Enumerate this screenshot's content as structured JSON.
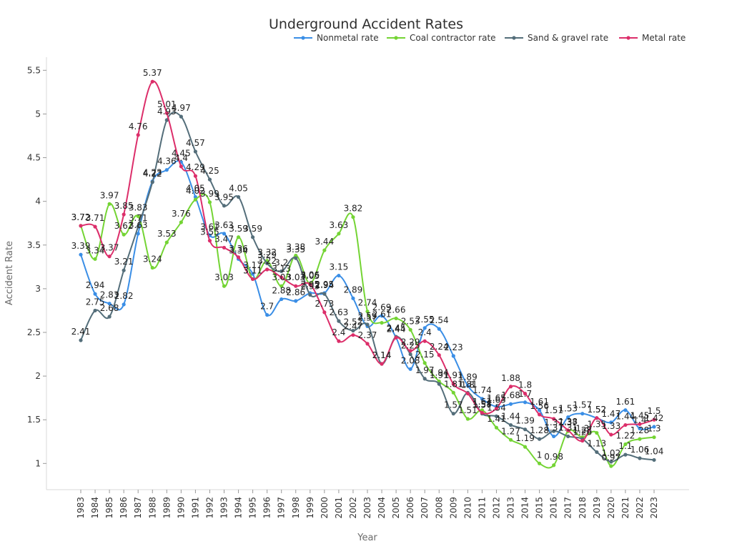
{
  "chart_data": {
    "type": "line",
    "title": "Underground Accident Rates",
    "xlabel": "Year",
    "ylabel": "Accident Rate",
    "ylim": [
      0.7,
      5.65
    ],
    "yticks": [
      "1",
      "1.5",
      "2",
      "2.5",
      "3",
      "3.5",
      "4",
      "4.5",
      "5",
      "5.5"
    ],
    "grid": false,
    "legend_position": "top-right",
    "categories": [
      "1983",
      "1984",
      "1985",
      "1986",
      "1987",
      "1988",
      "1989",
      "1990",
      "1991",
      "1992",
      "1993",
      "1994",
      "1995",
      "1996",
      "1997",
      "1998",
      "1999",
      "2000",
      "2001",
      "2002",
      "2003",
      "2004",
      "2005",
      "2006",
      "2007",
      "2008",
      "2009",
      "2010",
      "2011",
      "2012",
      "2013",
      "2014",
      "2015",
      "2016",
      "2017",
      "2018",
      "2019",
      "2020",
      "2021",
      "2022",
      "2023"
    ],
    "series": [
      {
        "name": "Nonmetal rate",
        "color": "#3a8ee6",
        "values": [
          3.39,
          2.94,
          2.83,
          2.82,
          3.63,
          4.23,
          4.36,
          4.45,
          4.05,
          3.61,
          3.63,
          3.34,
          3.17,
          2.7,
          2.88,
          2.86,
          2.95,
          2.95,
          3.15,
          2.89,
          2.57,
          2.69,
          2.44,
          2.08,
          2.55,
          2.54,
          2.23,
          1.89,
          1.74,
          1.65,
          1.68,
          1.7,
          1.61,
          1.31,
          1.53,
          1.57,
          1.52,
          1.47,
          1.61,
          1.4,
          1.42
        ]
      },
      {
        "name": "Coal contractor rate",
        "color": "#74d434",
        "values": [
          3.72,
          3.34,
          3.97,
          3.62,
          3.83,
          3.24,
          3.53,
          3.76,
          4.02,
          3.99,
          3.03,
          3.59,
          3.11,
          3.32,
          3.03,
          3.38,
          3.06,
          3.44,
          3.63,
          3.82,
          2.74,
          2.61,
          2.66,
          2.53,
          2.15,
          1.94,
          1.81,
          1.51,
          1.61,
          1.41,
          1.27,
          1.19,
          1.0,
          0.98,
          1.37,
          1.3,
          1.35,
          0.97,
          1.22,
          1.28,
          1.3
        ]
      },
      {
        "name": "Sand & gravel rate",
        "color": "#546e7a",
        "values": [
          2.41,
          2.75,
          2.68,
          3.21,
          3.71,
          4.22,
          4.93,
          4.97,
          4.57,
          4.25,
          3.95,
          4.05,
          3.59,
          3.29,
          3.2,
          3.35,
          2.93,
          2.94,
          2.63,
          2.52,
          2.59,
          2.14,
          2.45,
          2.25,
          1.97,
          1.91,
          1.57,
          1.81,
          1.57,
          1.54,
          1.44,
          1.39,
          1.28,
          1.37,
          1.31,
          1.28,
          1.13,
          1.02,
          1.1,
          1.06,
          1.04
        ]
      },
      {
        "name": "Metal rate",
        "color": "#dc2e6a",
        "values": [
          3.72,
          3.71,
          3.37,
          3.85,
          4.76,
          5.37,
          5.01,
          4.4,
          4.29,
          3.55,
          3.47,
          3.36,
          3.11,
          3.22,
          3.13,
          3.03,
          3.05,
          2.73,
          2.4,
          2.47,
          2.37,
          2.14,
          2.44,
          2.29,
          2.4,
          2.24,
          1.91,
          1.8,
          1.58,
          1.63,
          1.88,
          1.8,
          1.56,
          1.51,
          1.38,
          1.26,
          1.52,
          1.33,
          1.44,
          1.45,
          1.5
        ]
      }
    ]
  }
}
